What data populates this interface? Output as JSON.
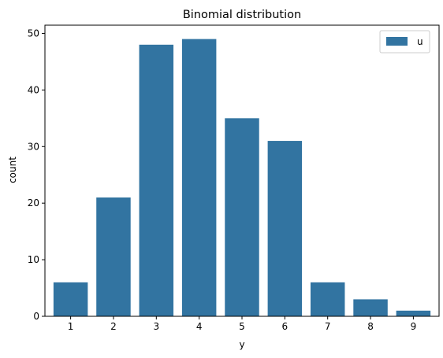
{
  "chart_data": {
    "type": "bar",
    "title": "Binomial distribution",
    "xlabel": "y",
    "ylabel": "count",
    "categories": [
      "1",
      "2",
      "3",
      "4",
      "5",
      "6",
      "7",
      "8",
      "9"
    ],
    "series": [
      {
        "name": "u",
        "values": [
          6,
          21,
          48,
          49,
          35,
          31,
          6,
          3,
          1
        ],
        "color": "#3274a1"
      }
    ],
    "ylim": [
      0,
      51.45
    ],
    "yticks": [
      0,
      10,
      20,
      30,
      40,
      50
    ],
    "grid": false,
    "legend_position": "top-right"
  }
}
